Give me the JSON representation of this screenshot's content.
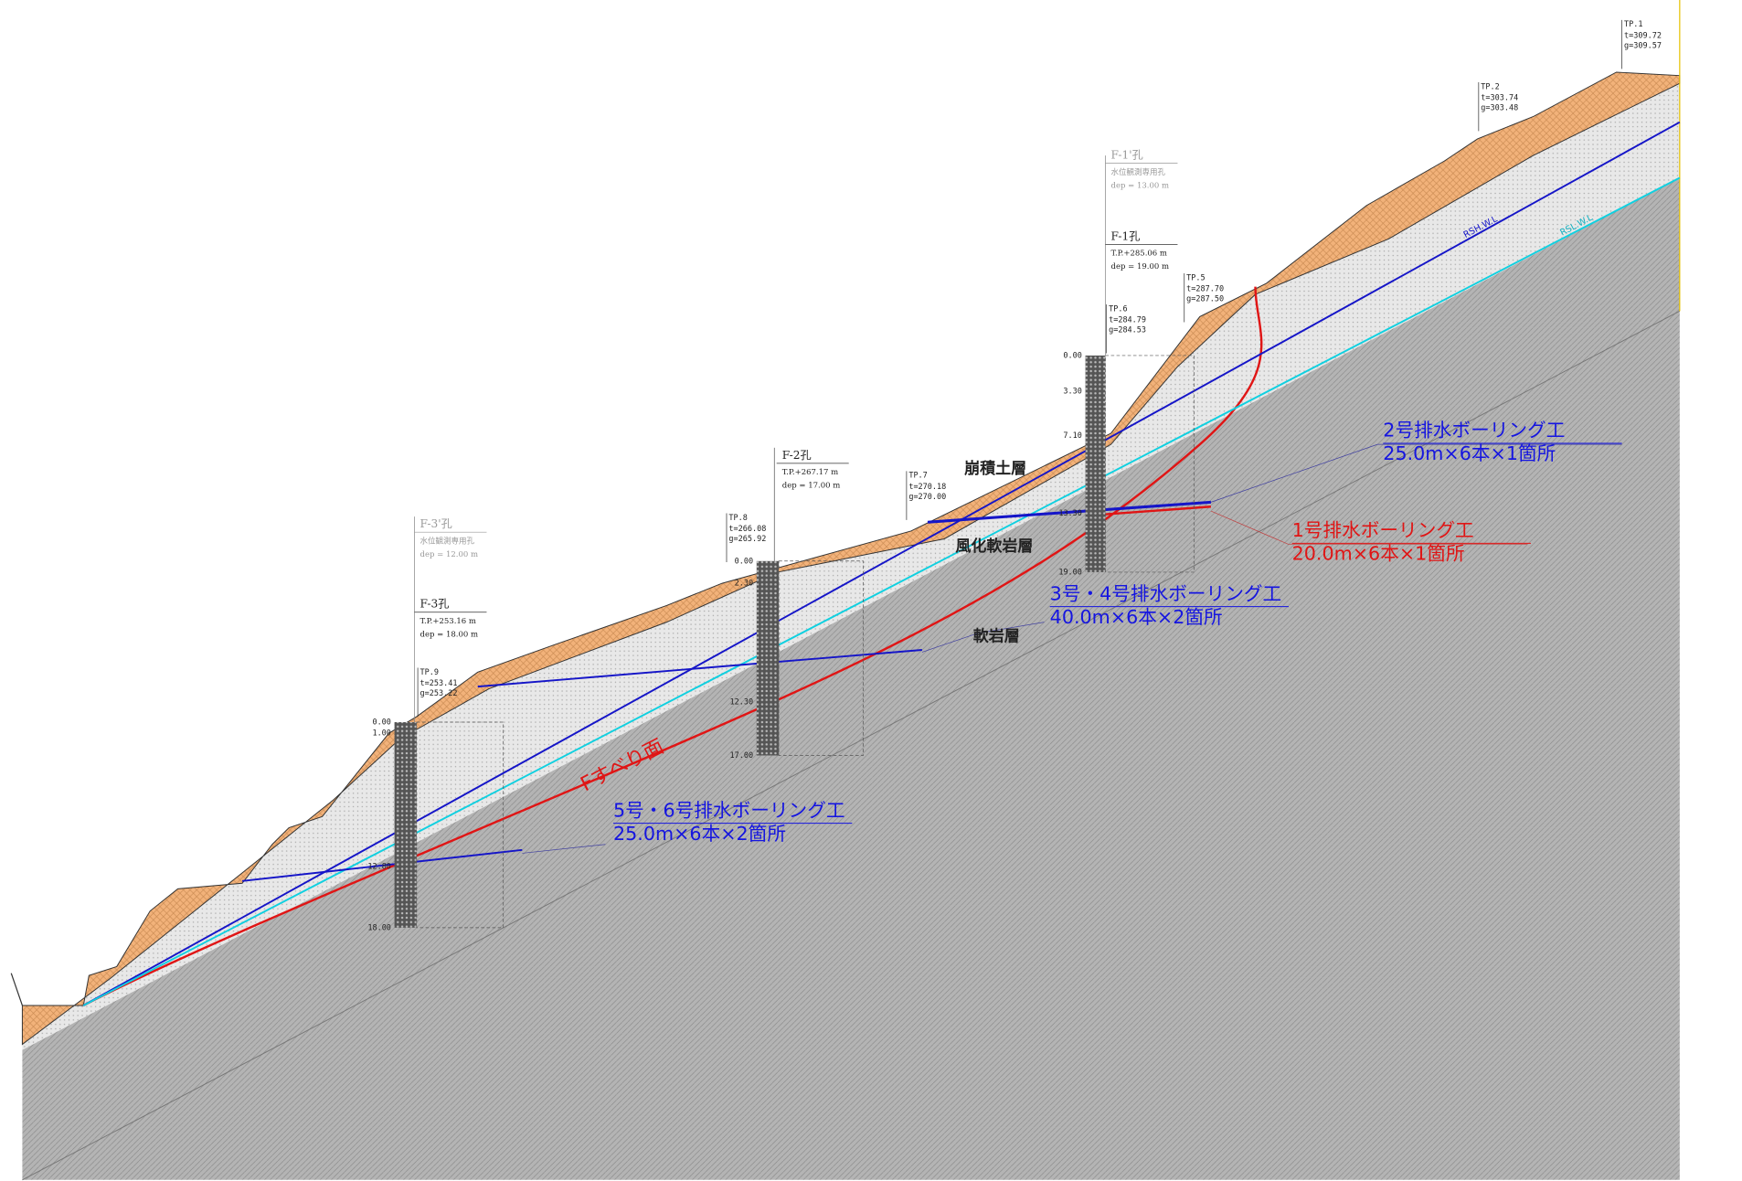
{
  "layers": [
    "崩積土層",
    "風化軟岩層",
    "軟岩層"
  ],
  "slip_surface": "Fすべり面",
  "water_levels": [
    "RSH.W.L",
    "RSL.W.L"
  ],
  "drains": [
    {
      "name": "2号排水ボーリング工",
      "spec": "25.0m×6本×1箇所"
    },
    {
      "name": "1号排水ボーリング工",
      "spec": "20.0m×6本×1箇所"
    },
    {
      "name": "3号・4号排水ボーリング工",
      "spec": "40.0m×6本×2箇所"
    },
    {
      "name": "5号・6号排水ボーリング工",
      "spec": "25.0m×6本×2箇所"
    }
  ],
  "boreholes": [
    {
      "name": "F-1'孔",
      "line1": "水位観測専用孔",
      "line2": "dep = 13.00 m"
    },
    {
      "name": "F-1孔",
      "line1": "T.P.+285.06 m",
      "line2": "dep = 19.00 m",
      "depths": [
        "0.00",
        "3.30",
        "7.10",
        "13.30",
        "19.00"
      ]
    },
    {
      "name": "F-2孔",
      "line1": "T.P.+267.17 m",
      "line2": "dep = 17.00 m",
      "depths": [
        "0.00",
        "2.30",
        "12.30",
        "17.00"
      ]
    },
    {
      "name": "F-3'孔",
      "line1": "水位観測専用孔",
      "line2": "dep = 12.00 m"
    },
    {
      "name": "F-3孔",
      "line1": "T.P.+253.16 m",
      "line2": "dep = 18.00 m",
      "depths": [
        "0.00",
        "1.00",
        "12.80",
        "18.00"
      ]
    }
  ],
  "survey_points": [
    {
      "name": "TP.1",
      "t": "t=309.72",
      "g": "g=309.57"
    },
    {
      "name": "TP.2",
      "t": "t=303.74",
      "g": "g=303.48"
    },
    {
      "name": "TP.5",
      "t": "t=287.70",
      "g": "g=287.50"
    },
    {
      "name": "TP.6",
      "t": "t=284.79",
      "g": "g=284.53"
    },
    {
      "name": "TP.7",
      "t": "t=270.18",
      "g": "g=270.00"
    },
    {
      "name": "TP.8",
      "t": "t=266.08",
      "g": "g=265.92"
    },
    {
      "name": "TP.9",
      "t": "t=253.41",
      "g": "g=253.22"
    }
  ]
}
